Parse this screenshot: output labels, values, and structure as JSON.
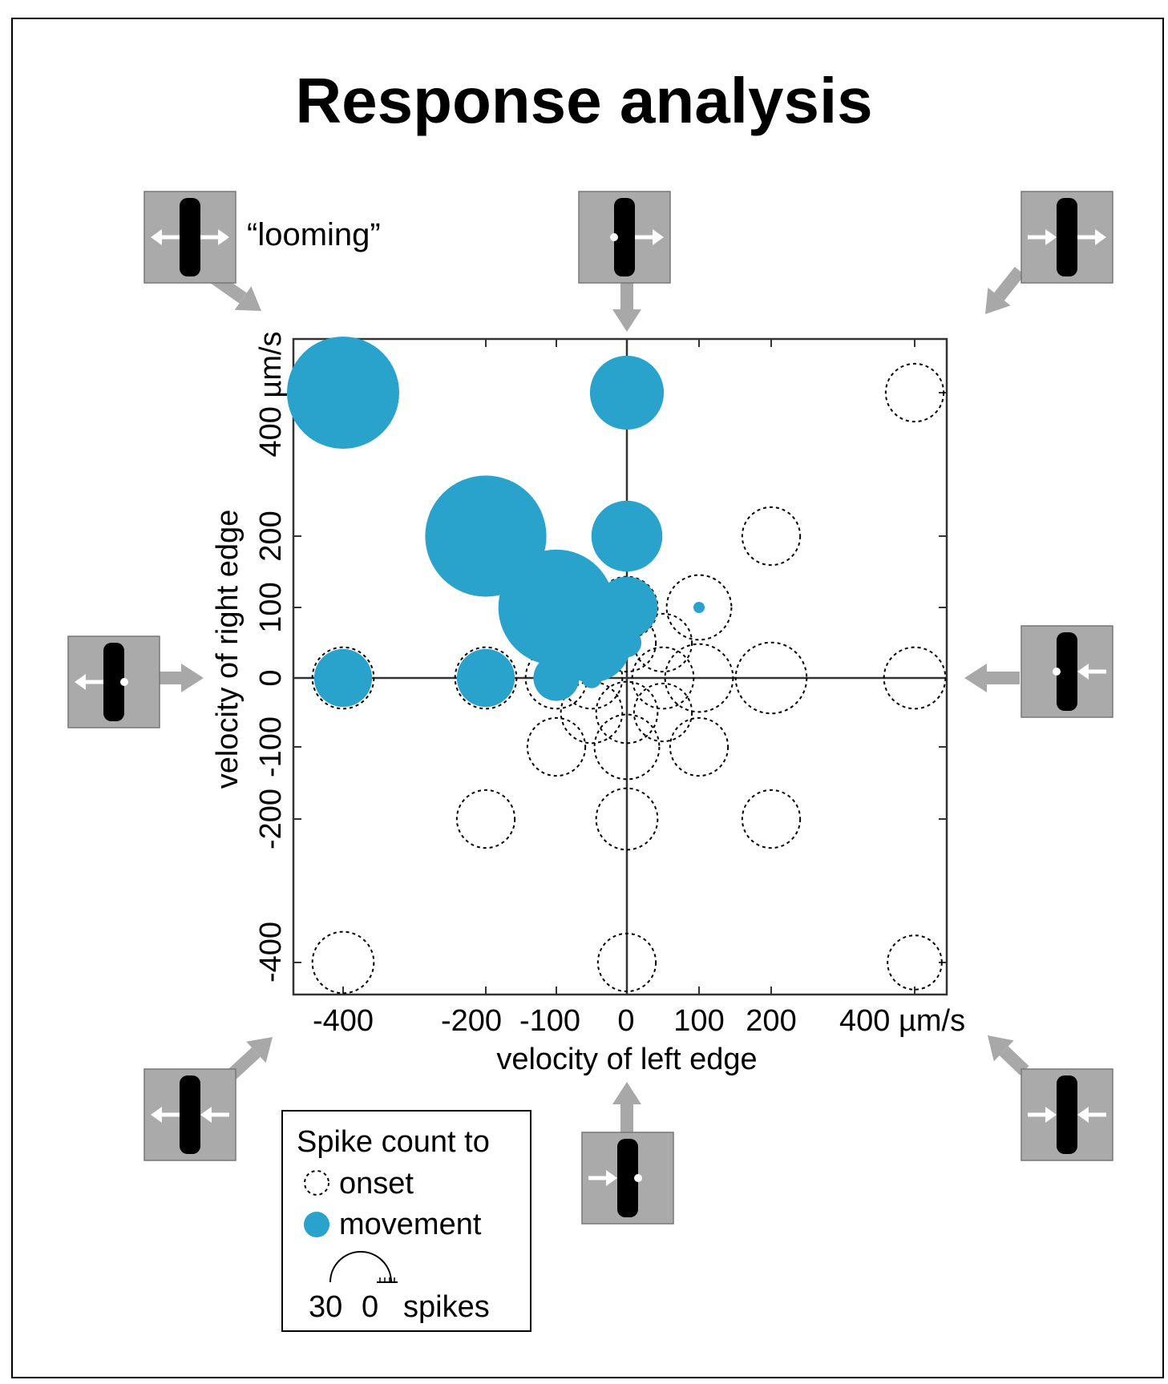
{
  "title": "Response analysis",
  "looming_label": "“looming”",
  "colors": {
    "movement": "#29a3cc",
    "onset": "#000000",
    "stim_box": "#aaaaaa",
    "arrow": "#a8a8a8"
  },
  "chart_data": {
    "type": "scatter",
    "title": "Response analysis",
    "xlabel": "velocity of left edge",
    "ylabel": "velocity of right edge",
    "x_tick_labels": [
      "-400",
      "-200",
      "-100",
      "0",
      "100",
      "200",
      "400 µm/s"
    ],
    "y_tick_labels": [
      "-400",
      "-200",
      "-100",
      "0",
      "100",
      "200",
      "400 µm/s"
    ],
    "ticks": [
      -400,
      -200,
      -100,
      0,
      100,
      200,
      400
    ],
    "xlim": [
      -470,
      450
    ],
    "ylim": [
      -450,
      470
    ],
    "grid": false,
    "size_unit": "spikes",
    "series": [
      {
        "name": "onset",
        "style": "dashed-circle",
        "points": [
          {
            "x": -400,
            "y": 400,
            "spikes": 8
          },
          {
            "x": 0,
            "y": 400,
            "spikes": 8
          },
          {
            "x": 400,
            "y": 400,
            "spikes": 8
          },
          {
            "x": -200,
            "y": 200,
            "spikes": 8
          },
          {
            "x": 0,
            "y": 200,
            "spikes": 8
          },
          {
            "x": 200,
            "y": 200,
            "spikes": 8
          },
          {
            "x": -100,
            "y": 100,
            "spikes": 8
          },
          {
            "x": 0,
            "y": 100,
            "spikes": 9
          },
          {
            "x": 100,
            "y": 100,
            "spikes": 10
          },
          {
            "x": -50,
            "y": 50,
            "spikes": 8
          },
          {
            "x": 0,
            "y": 50,
            "spikes": 8
          },
          {
            "x": 50,
            "y": 50,
            "spikes": 8
          },
          {
            "x": -400,
            "y": 0,
            "spikes": 9
          },
          {
            "x": -200,
            "y": 0,
            "spikes": 9
          },
          {
            "x": -100,
            "y": 0,
            "spikes": 9
          },
          {
            "x": -50,
            "y": 0,
            "spikes": 9
          },
          {
            "x": 50,
            "y": 0,
            "spikes": 9
          },
          {
            "x": 100,
            "y": 0,
            "spikes": 11
          },
          {
            "x": 200,
            "y": 0,
            "spikes": 12
          },
          {
            "x": 400,
            "y": 0,
            "spikes": 9
          },
          {
            "x": -50,
            "y": -50,
            "spikes": 9
          },
          {
            "x": 0,
            "y": -50,
            "spikes": 9
          },
          {
            "x": 50,
            "y": -50,
            "spikes": 8
          },
          {
            "x": -100,
            "y": -100,
            "spikes": 8
          },
          {
            "x": 0,
            "y": -100,
            "spikes": 10
          },
          {
            "x": 100,
            "y": -100,
            "spikes": 8
          },
          {
            "x": -200,
            "y": -200,
            "spikes": 8
          },
          {
            "x": 0,
            "y": -200,
            "spikes": 9
          },
          {
            "x": 200,
            "y": -200,
            "spikes": 8
          },
          {
            "x": -400,
            "y": -400,
            "spikes": 9
          },
          {
            "x": 0,
            "y": -400,
            "spikes": 8
          },
          {
            "x": 400,
            "y": -400,
            "spikes": 7
          }
        ]
      },
      {
        "name": "movement",
        "style": "filled-circle",
        "points": [
          {
            "x": -400,
            "y": 400,
            "spikes": 30
          },
          {
            "x": 0,
            "y": 400,
            "spikes": 13
          },
          {
            "x": -200,
            "y": 200,
            "spikes": 35
          },
          {
            "x": 0,
            "y": 200,
            "spikes": 12
          },
          {
            "x": -100,
            "y": 100,
            "spikes": 32
          },
          {
            "x": 0,
            "y": 100,
            "spikes": 9
          },
          {
            "x": -50,
            "y": 50,
            "spikes": 15
          },
          {
            "x": 0,
            "y": 50,
            "spikes": 2
          },
          {
            "x": 100,
            "y": 100,
            "spikes": 0.3
          },
          {
            "x": -400,
            "y": 0,
            "spikes": 8
          },
          {
            "x": -200,
            "y": 0,
            "spikes": 8
          },
          {
            "x": -100,
            "y": 0,
            "spikes": 5
          },
          {
            "x": -50,
            "y": 0,
            "spikes": 1
          }
        ]
      }
    ]
  },
  "legend": {
    "title": "Spike count to",
    "onset_label": "onset",
    "movement_label": "movement",
    "scale_max": "30",
    "scale_min": "0",
    "scale_unit": "spikes"
  },
  "stimulus_icons": [
    {
      "name": "stimulus-looming",
      "edge_left": "out",
      "edge_right": "out"
    },
    {
      "name": "stimulus-right-edge-out",
      "edge_left": "still",
      "edge_right": "out"
    },
    {
      "name": "stimulus-both-right",
      "edge_left": "right",
      "edge_right": "out"
    },
    {
      "name": "stimulus-left-edge-out",
      "edge_left": "out",
      "edge_right": "still"
    },
    {
      "name": "stimulus-left-edge-in",
      "edge_left": "in",
      "edge_right": "still"
    },
    {
      "name": "stimulus-both-left",
      "edge_left": "out",
      "edge_right": "in"
    },
    {
      "name": "stimulus-right-edge-in",
      "edge_left": "still",
      "edge_right": "in"
    },
    {
      "name": "stimulus-collapsing",
      "edge_left": "in",
      "edge_right": "in"
    }
  ]
}
